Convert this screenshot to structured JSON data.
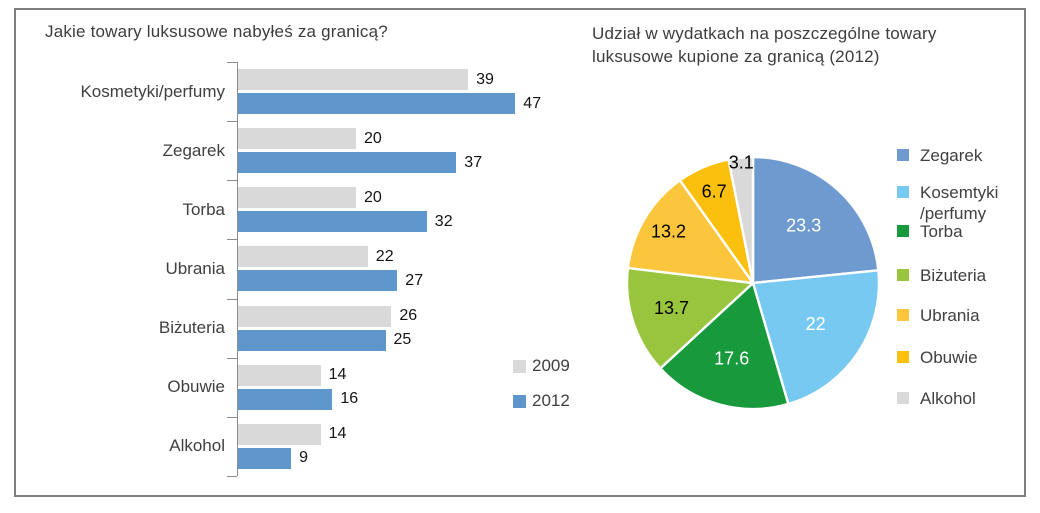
{
  "chart_data": [
    {
      "type": "bar",
      "orientation": "horizontal",
      "title": "Jakie towary luksusowe nabyłeś za granicą?",
      "categories": [
        "Kosmetyki/perfumy",
        "Zegarek",
        "Torba",
        "Ubrania",
        "Biżuteria",
        "Obuwie",
        "Alkohol"
      ],
      "series": [
        {
          "name": "2009",
          "color": "#d9d9d9",
          "values": [
            39,
            20,
            20,
            22,
            26,
            14,
            14
          ]
        },
        {
          "name": "2012",
          "color": "#5f97cc",
          "values": [
            47,
            37,
            32,
            27,
            25,
            16,
            9
          ]
        }
      ],
      "xlim": [
        0,
        50
      ],
      "grid": false,
      "value_labels": true,
      "legend_position": "right-center",
      "axis_color": "#8c8c8c"
    },
    {
      "type": "pie",
      "title": "Udział w wydatkach na poszczególne towary luksusowe kupione za granicą (2012)",
      "labels": [
        "Zegarek",
        "Kosemtyki\n/perfumy",
        "Torba",
        "Biżuteria",
        "Ubrania",
        "Obuwie",
        "Alkohol"
      ],
      "values": [
        23.3,
        22,
        17.6,
        13.7,
        13.2,
        6.7,
        3.1
      ],
      "colors": [
        "#6f9ad0",
        "#78c9f2",
        "#17993c",
        "#98c43e",
        "#fcc63c",
        "#fbbf0d",
        "#d9d9d9"
      ],
      "label_colors": [
        "#ffffff",
        "#ffffff",
        "#ffffff",
        "#000000",
        "#000000",
        "#000000",
        "#000000"
      ],
      "start_angle_deg": 0,
      "direction": "clockwise",
      "slice_border_color": "#ffffff",
      "legend_position": "right"
    }
  ],
  "frame_border_color": "#7f7f7f"
}
